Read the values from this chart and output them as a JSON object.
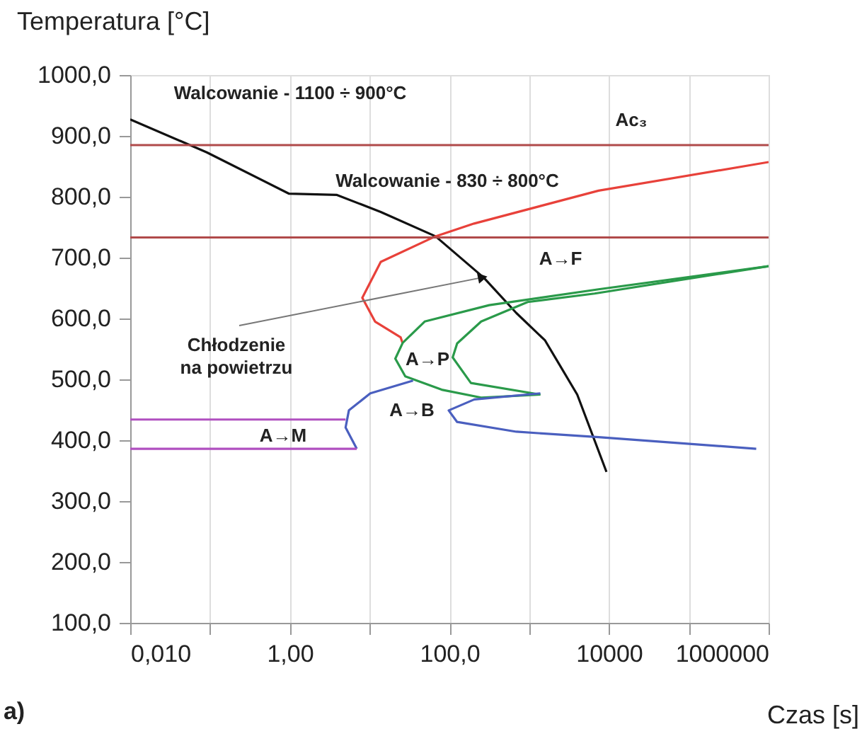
{
  "chart_data": {
    "type": "line",
    "xlabel": "Czas  [s]",
    "ylabel": "Temperatura  [°C]",
    "log": "x",
    "grid": "x",
    "marker": "none",
    "line_style": "solid",
    "xlim": [
      0.01,
      1000000
    ],
    "ylim": [
      100,
      1000
    ],
    "xticks": [
      {
        "value": 0.01,
        "label": "0,010"
      },
      {
        "value": 0.1,
        "label": null
      },
      {
        "value": 1,
        "label": "1,00"
      },
      {
        "value": 10,
        "label": null
      },
      {
        "value": 100,
        "label": "100,0"
      },
      {
        "value": 1000,
        "label": null
      },
      {
        "value": 10000,
        "label": "10000"
      },
      {
        "value": 100000,
        "label": null
      },
      {
        "value": 1000000,
        "label": "1000000"
      }
    ],
    "yticks": [
      {
        "value": 100,
        "label": "100,0"
      },
      {
        "value": 200,
        "label": "200,0"
      },
      {
        "value": 300,
        "label": "300,0"
      },
      {
        "value": 400,
        "label": "400,0"
      },
      {
        "value": 500,
        "label": "500,0"
      },
      {
        "value": 600,
        "label": "600,0"
      },
      {
        "value": 700,
        "label": "700,0"
      },
      {
        "value": 800,
        "label": "800,0"
      },
      {
        "value": 900,
        "label": "900,0"
      },
      {
        "value": 1000,
        "label": "1000,0"
      }
    ],
    "series": [
      {
        "color": "#111111",
        "x": [
          0.01,
          0.091,
          0.98,
          3.9,
          13.8,
          67,
          270,
          690,
          1580,
          4000,
          9300
        ],
        "values": [
          927,
          873,
          805,
          803,
          775,
          735,
          667,
          609,
          564,
          475,
          348
        ]
      },
      {
        "color": "#e8413a",
        "x": [
          1000000,
          7400,
          204,
          67,
          13.8,
          8.1,
          11.7,
          24.5,
          26
        ],
        "values": [
          857,
          810,
          756,
          735,
          693,
          634,
          595,
          569,
          559
        ]
      },
      {
        "color": "#2a9a4a",
        "x": [
          1000000,
          7400,
          316,
          49,
          26,
          21,
          28,
          80,
          250,
          1380
        ],
        "values": [
          686,
          648,
          622,
          595,
          560,
          534,
          505,
          483,
          470,
          475
        ]
      },
      {
        "color": "#2a9a4a",
        "x": [
          1000000,
          6600,
          955,
          250,
          125,
          110,
          186,
          1380
        ],
        "values": [
          686,
          641,
          627,
          595,
          559,
          536,
          494,
          475
        ]
      },
      {
        "color": "#4a5fbf",
        "x": [
          6.9,
          5.0,
          5.5,
          10.2,
          35
        ],
        "values": [
          386,
          421,
          449,
          477,
          498
        ]
      },
      {
        "color": "#4a5fbf",
        "x": [
          1380,
          205,
          98,
          125,
          690,
          7400,
          700000
        ],
        "values": [
          477,
          467,
          449,
          430,
          414,
          405,
          386
        ]
      },
      {
        "color": "#b04fc0",
        "x": [
          0.01,
          5.0
        ],
        "values": [
          434,
          434
        ]
      },
      {
        "color": "#b04fc0",
        "x": [
          0.01,
          6.9
        ],
        "values": [
          386,
          386
        ]
      }
    ],
    "ref_lines": [
      {
        "axis": "y",
        "value": 885,
        "color": "#b04a4a"
      },
      {
        "axis": "y",
        "value": 733,
        "color": "#b04a4a"
      }
    ],
    "annotations": [
      "Walcowanie - 1100 ÷ 900°C",
      "Walcowanie - 830 ÷ 800°C",
      "Ac₃",
      "A→F",
      {
        "text": "Chłodzenie\nna powietrzu",
        "x": 250,
        "y": 667
      },
      "A→P",
      "A→B",
      "A→M",
      "a)"
    ]
  }
}
